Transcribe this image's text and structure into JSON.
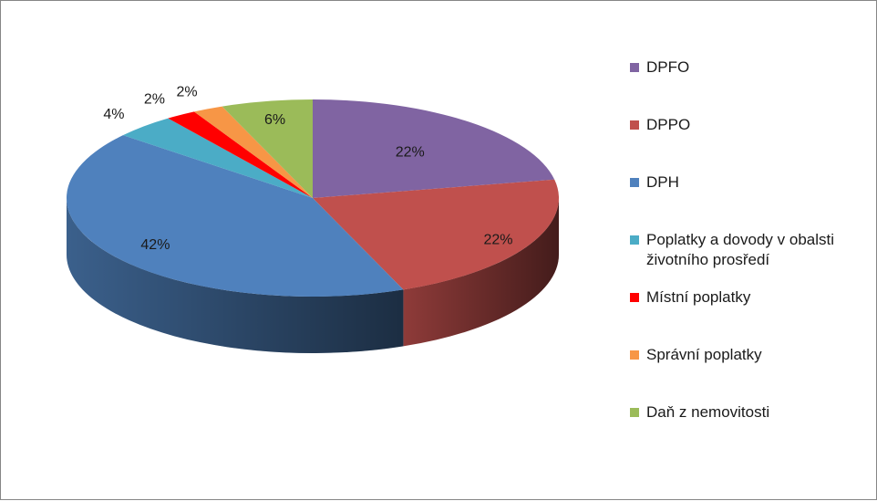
{
  "chart_data": {
    "type": "pie",
    "categories": [
      "DPFO",
      "DPPO",
      "DPH",
      "Poplatky a dovody v obalsti\nživotního prosředí",
      "Místní poplatky",
      "Správní poplatky",
      "Daň z nemovitosti"
    ],
    "values": [
      22,
      22,
      42,
      4,
      2,
      2,
      6
    ],
    "value_labels": [
      "22%",
      "22%",
      "42%",
      "4%",
      "2%",
      "2%",
      "6%"
    ],
    "colors": [
      "#8064A2",
      "#C0504D",
      "#4F81BD",
      "#4BACC6",
      "#FF0000",
      "#F79646",
      "#9BBB59"
    ],
    "legend_position": "right",
    "style": "3d"
  }
}
